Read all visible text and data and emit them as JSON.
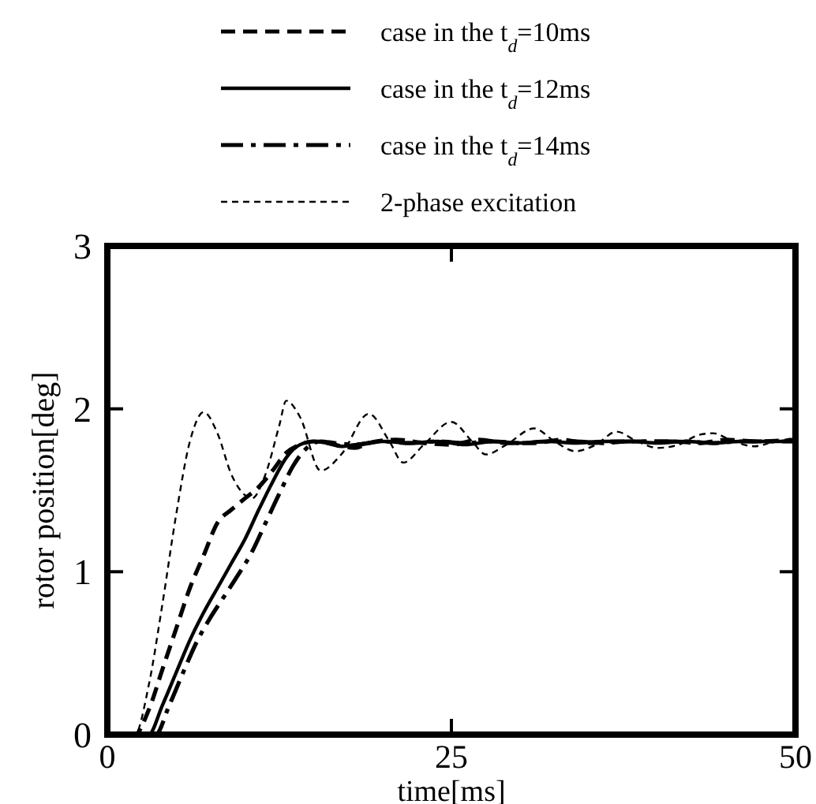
{
  "chart_data": {
    "type": "line",
    "xlabel": "time[ms]",
    "ylabel": "rotor position[deg]",
    "xlim": [
      0,
      50
    ],
    "ylim": [
      0,
      3
    ],
    "xticks": [
      0,
      25,
      50
    ],
    "yticks": [
      0,
      1,
      2,
      3
    ],
    "grid": false,
    "legend": "top",
    "series": [
      {
        "name": "case in the t$_{d}$=10ms",
        "color": "#000000",
        "line_style": "dashed",
        "x": [
          0,
          2,
          3,
          4,
          5,
          6,
          7,
          8,
          9,
          10,
          11,
          12,
          13,
          14,
          15,
          16,
          17,
          18,
          19,
          21,
          23,
          25,
          27,
          29,
          31,
          33,
          35,
          37,
          39,
          41,
          43,
          45,
          47,
          50
        ],
        "values": [
          0,
          0,
          0.15,
          0.4,
          0.65,
          0.9,
          1.1,
          1.3,
          1.38,
          1.45,
          1.52,
          1.62,
          1.73,
          1.78,
          1.8,
          1.79,
          1.77,
          1.76,
          1.79,
          1.81,
          1.79,
          1.78,
          1.81,
          1.79,
          1.79,
          1.81,
          1.79,
          1.8,
          1.8,
          1.8,
          1.79,
          1.81,
          1.8,
          1.81
        ]
      },
      {
        "name": "case in the t$_{d}$=12ms",
        "color": "#000000",
        "line_style": "solid",
        "x": [
          0,
          3,
          4,
          5,
          6,
          7,
          8,
          9,
          10,
          11,
          12,
          13,
          14,
          15,
          16,
          17,
          18,
          20,
          22,
          24,
          26,
          28,
          30,
          32,
          34,
          36,
          38,
          40,
          42,
          44,
          46,
          48,
          50
        ],
        "values": [
          0,
          0,
          0.18,
          0.38,
          0.58,
          0.75,
          0.9,
          1.05,
          1.2,
          1.38,
          1.55,
          1.7,
          1.78,
          1.8,
          1.79,
          1.77,
          1.78,
          1.8,
          1.79,
          1.8,
          1.78,
          1.8,
          1.79,
          1.8,
          1.79,
          1.8,
          1.8,
          1.79,
          1.8,
          1.79,
          1.8,
          1.8,
          1.8
        ]
      },
      {
        "name": "case in the t$_{d}$=14ms",
        "color": "#000000",
        "line_style": "dashdot",
        "x": [
          0,
          3.5,
          4.5,
          5.5,
          6.5,
          7.5,
          8.5,
          9.5,
          10.5,
          11.5,
          12.5,
          13.5,
          14.5,
          15.5,
          16.5,
          18,
          20,
          22,
          24,
          26,
          28,
          30,
          32,
          34,
          36,
          38,
          40,
          42,
          44,
          46,
          48,
          50
        ],
        "values": [
          0,
          0,
          0.18,
          0.38,
          0.57,
          0.72,
          0.85,
          0.98,
          1.12,
          1.3,
          1.48,
          1.65,
          1.76,
          1.8,
          1.79,
          1.78,
          1.8,
          1.79,
          1.8,
          1.79,
          1.8,
          1.79,
          1.8,
          1.8,
          1.79,
          1.8,
          1.8,
          1.8,
          1.79,
          1.8,
          1.8,
          1.8
        ]
      },
      {
        "name": "2-phase excitation",
        "color": "#000000",
        "line_style": "dotted",
        "x": [
          0,
          2,
          3,
          4,
          5,
          6,
          7,
          8,
          9,
          10,
          10.5,
          11.5,
          12.5,
          13,
          14,
          15.5,
          17,
          19,
          20.5,
          21.5,
          23,
          25,
          26.5,
          27.5,
          29,
          31,
          32.5,
          34,
          35.5,
          37,
          38.5,
          40,
          41.5,
          43,
          44,
          45.5,
          47,
          48.5,
          50
        ],
        "values": [
          0,
          0,
          0.3,
          0.8,
          1.35,
          1.8,
          1.98,
          1.85,
          1.6,
          1.47,
          1.45,
          1.6,
          1.9,
          2.05,
          1.95,
          1.62,
          1.72,
          1.97,
          1.8,
          1.67,
          1.78,
          1.92,
          1.8,
          1.72,
          1.78,
          1.88,
          1.8,
          1.74,
          1.78,
          1.86,
          1.8,
          1.76,
          1.78,
          1.84,
          1.85,
          1.8,
          1.77,
          1.8,
          1.82
        ]
      }
    ]
  }
}
